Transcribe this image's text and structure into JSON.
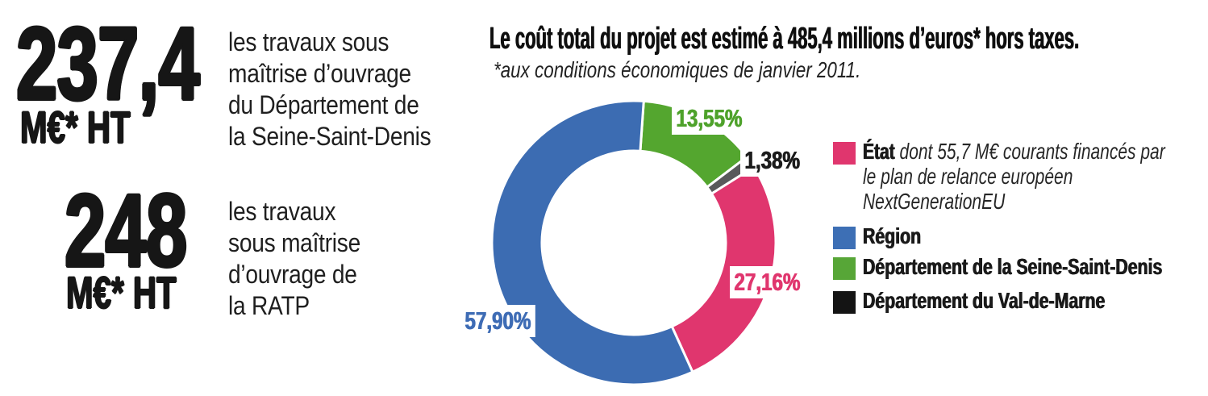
{
  "stats": [
    {
      "value": "237,4",
      "unit": "M€* HT",
      "description": "les travaux sous\nmaîtrise d’ouvrage\ndu Département de\nla Seine-Saint-Denis"
    },
    {
      "value": "248",
      "unit": "M€* HT",
      "description": "les travaux\nsous maîtrise\nd’ouvrage de\nla RATP"
    }
  ],
  "chart_data": {
    "type": "pie",
    "subtype": "donut",
    "title": "Le coût total du projet est estimé à 485,4 millions d’euros* hors taxes.",
    "footnote": "*aux conditions économiques de janvier 2011.",
    "values_unit": "%",
    "total_label": "485,4 millions d’euros hors taxes",
    "start_angle_deg": 4,
    "direction": "clockwise-from-top",
    "legend_position": "right",
    "segments": [
      {
        "name": "Département de la Seine-Saint-Denis",
        "value": 13.55,
        "label": "13,55%",
        "color": "#54a62f",
        "label_color": "#4ea22b"
      },
      {
        "name": "Département du Val-de-Marne",
        "value": 1.38,
        "label": "1,38%",
        "color": "#59595b",
        "label_color": "#1b1b1b"
      },
      {
        "name": "État",
        "value": 27.16,
        "label": "27,16%",
        "color": "#e0366e",
        "label_color": "#e0366e"
      },
      {
        "name": "Région",
        "value": 57.9,
        "label": "57,90%",
        "color": "#3c6cb2",
        "label_color": "#3e6cb5"
      }
    ],
    "legend": [
      {
        "label": "État",
        "note": "dont 55,7 M€ courants financés par le plan de relance européen NextGenerationEU",
        "color": "#e0366e"
      },
      {
        "label": "Région",
        "note": "",
        "color": "#3d6fb5"
      },
      {
        "label": "Département de la Seine-Saint-Denis",
        "note": "",
        "color": "#57a637"
      },
      {
        "label": "Département du Val-de-Marne",
        "note": "",
        "color": "#141414"
      }
    ]
  }
}
